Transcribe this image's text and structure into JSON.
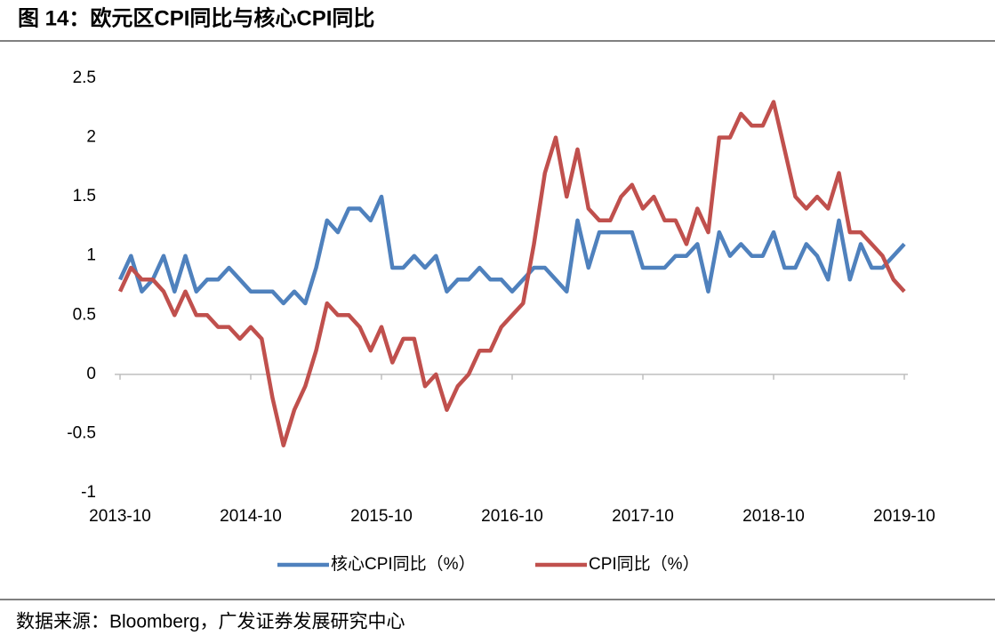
{
  "chart_data": {
    "type": "line",
    "title": "图 14：欧元区CPI同比与核心CPI同比",
    "source": "数据来源：Bloomberg，广发证券发展研究中心",
    "categories": [
      "2013-10",
      null,
      null,
      null,
      null,
      null,
      null,
      null,
      null,
      null,
      null,
      null,
      "2014-10",
      null,
      null,
      null,
      null,
      null,
      null,
      null,
      null,
      null,
      null,
      null,
      "2015-10",
      null,
      null,
      null,
      null,
      null,
      null,
      null,
      null,
      null,
      null,
      null,
      "2016-10",
      null,
      null,
      null,
      null,
      null,
      null,
      null,
      null,
      null,
      null,
      null,
      "2017-10",
      null,
      null,
      null,
      null,
      null,
      null,
      null,
      null,
      null,
      null,
      null,
      "2018-10",
      null,
      null,
      null,
      null,
      null,
      null,
      null,
      null,
      null,
      null,
      null,
      "2019-10"
    ],
    "series": [
      {
        "name": "核心CPI同比（%）",
        "color": "#4f81bd",
        "values": [
          0.8,
          1.0,
          0.7,
          0.8,
          1.0,
          0.7,
          1.0,
          0.7,
          0.8,
          0.8,
          0.9,
          0.8,
          0.7,
          0.7,
          0.7,
          0.6,
          0.7,
          0.6,
          0.9,
          1.3,
          1.2,
          1.4,
          1.4,
          1.3,
          1.5,
          0.9,
          0.9,
          1.0,
          0.9,
          1.0,
          0.7,
          0.8,
          0.8,
          0.9,
          0.8,
          0.8,
          0.7,
          0.8,
          0.9,
          0.9,
          0.8,
          0.7,
          1.3,
          0.9,
          1.2,
          1.2,
          1.2,
          1.2,
          0.9,
          0.9,
          0.9,
          1.0,
          1.0,
          1.1,
          0.7,
          1.2,
          1.0,
          1.1,
          1.0,
          1.0,
          1.2,
          0.9,
          0.9,
          1.1,
          1.0,
          0.8,
          1.3,
          0.8,
          1.1,
          0.9,
          0.9,
          1.0,
          1.1
        ]
      },
      {
        "name": "CPI同比（%）",
        "color": "#c0504d",
        "values": [
          0.7,
          0.9,
          0.8,
          0.8,
          0.7,
          0.5,
          0.7,
          0.5,
          0.5,
          0.4,
          0.4,
          0.3,
          0.4,
          0.3,
          -0.2,
          -0.6,
          -0.3,
          -0.1,
          0.2,
          0.6,
          0.5,
          0.5,
          0.4,
          0.2,
          0.4,
          0.1,
          0.3,
          0.3,
          -0.1,
          0.0,
          -0.3,
          -0.1,
          0.0,
          0.2,
          0.2,
          0.4,
          0.5,
          0.6,
          1.1,
          1.7,
          2.0,
          1.5,
          1.9,
          1.4,
          1.3,
          1.3,
          1.5,
          1.6,
          1.4,
          1.5,
          1.3,
          1.3,
          1.1,
          1.4,
          1.2,
          2.0,
          2.0,
          2.2,
          2.1,
          2.1,
          2.3,
          1.9,
          1.5,
          1.4,
          1.5,
          1.4,
          1.7,
          1.2,
          1.2,
          1.1,
          1.0,
          0.8,
          0.7
        ]
      }
    ],
    "ylim": [
      -1,
      2.5
    ],
    "yticks": [
      -1,
      -0.5,
      0,
      0.5,
      1,
      1.5,
      2,
      2.5
    ],
    "grid": false
  }
}
